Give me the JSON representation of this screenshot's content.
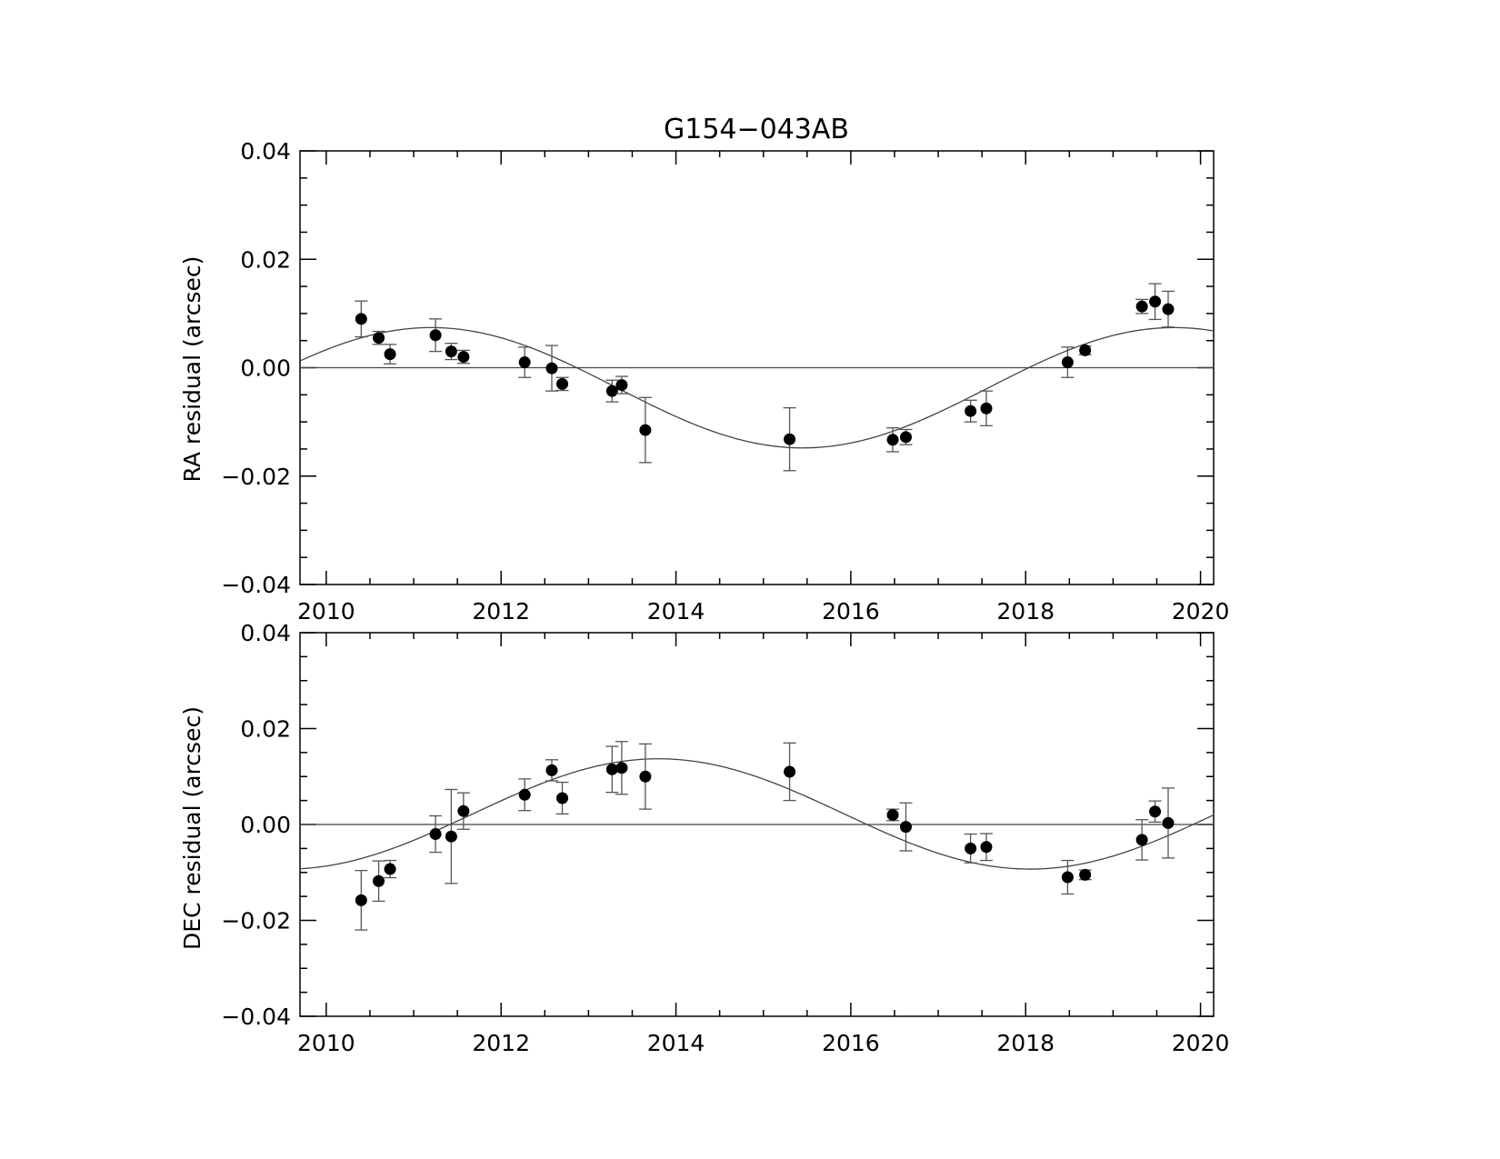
{
  "chart_data": [
    {
      "type": "scatter",
      "title": "G154−043AB",
      "ylabel": "RA residual (arcsec)",
      "xlabel": "",
      "xlim": [
        2009.7,
        2020.15
      ],
      "ylim": [
        -0.04,
        0.04
      ],
      "xticks": [
        2010,
        2012,
        2014,
        2016,
        2018,
        2020
      ],
      "xtick_labels": [
        "2010",
        "2012",
        "2014",
        "2016",
        "2018",
        "2020"
      ],
      "yticks": [
        -0.04,
        -0.02,
        0.0,
        0.02,
        0.04
      ],
      "ytick_labels": [
        "−0.04",
        "−0.02",
        "0.00",
        "0.02",
        "0.04"
      ],
      "zero_line": 0,
      "fit": {
        "offset": -0.0037,
        "amplitude": 0.0111,
        "period_years": 8.5,
        "peak_epoch": 2011.2
      },
      "points": [
        {
          "x": 2010.4,
          "y": 0.009,
          "err": 0.0033
        },
        {
          "x": 2010.6,
          "y": 0.0055,
          "err": 0.0012
        },
        {
          "x": 2010.73,
          "y": 0.0025,
          "err": 0.0018
        },
        {
          "x": 2011.25,
          "y": 0.006,
          "err": 0.003
        },
        {
          "x": 2011.43,
          "y": 0.003,
          "err": 0.0015
        },
        {
          "x": 2011.57,
          "y": 0.002,
          "err": 0.0012
        },
        {
          "x": 2012.27,
          "y": 0.001,
          "err": 0.0028
        },
        {
          "x": 2012.58,
          "y": -0.0001,
          "err": 0.0042
        },
        {
          "x": 2012.7,
          "y": -0.003,
          "err": 0.0012
        },
        {
          "x": 2013.27,
          "y": -0.0043,
          "err": 0.002
        },
        {
          "x": 2013.38,
          "y": -0.0032,
          "err": 0.0016
        },
        {
          "x": 2013.65,
          "y": -0.0115,
          "err": 0.006
        },
        {
          "x": 2015.3,
          "y": -0.0132,
          "err": 0.0058
        },
        {
          "x": 2016.48,
          "y": -0.0133,
          "err": 0.0022
        },
        {
          "x": 2016.63,
          "y": -0.0128,
          "err": 0.0014
        },
        {
          "x": 2017.37,
          "y": -0.008,
          "err": 0.002
        },
        {
          "x": 2017.55,
          "y": -0.0075,
          "err": 0.0032
        },
        {
          "x": 2018.48,
          "y": 0.001,
          "err": 0.0028
        },
        {
          "x": 2018.68,
          "y": 0.0032,
          "err": 0.0008
        },
        {
          "x": 2019.33,
          "y": 0.0113,
          "err": 0.0013
        },
        {
          "x": 2019.48,
          "y": 0.0122,
          "err": 0.0033
        },
        {
          "x": 2019.63,
          "y": 0.0108,
          "err": 0.0033
        }
      ]
    },
    {
      "type": "scatter",
      "title": "",
      "ylabel": "DEC residual (arcsec)",
      "xlabel": "",
      "xlim": [
        2009.7,
        2020.15
      ],
      "ylim": [
        -0.04,
        0.04
      ],
      "xticks": [
        2010,
        2012,
        2014,
        2016,
        2018,
        2020
      ],
      "xtick_labels": [
        "2010",
        "2012",
        "2014",
        "2016",
        "2018",
        "2020"
      ],
      "yticks": [
        -0.04,
        -0.02,
        0.0,
        0.02,
        0.04
      ],
      "ytick_labels": [
        "−0.04",
        "−0.02",
        "0.00",
        "0.02",
        "0.04"
      ],
      "zero_line": 0,
      "fit": {
        "offset": 0.0022,
        "amplitude": 0.0115,
        "period_years": 8.5,
        "peak_epoch": 2013.8
      },
      "points": [
        {
          "x": 2010.4,
          "y": -0.0158,
          "err": 0.0062
        },
        {
          "x": 2010.6,
          "y": -0.0118,
          "err": 0.0042
        },
        {
          "x": 2010.73,
          "y": -0.0093,
          "err": 0.0018
        },
        {
          "x": 2011.25,
          "y": -0.002,
          "err": 0.0038
        },
        {
          "x": 2011.43,
          "y": -0.0025,
          "err": 0.0098
        },
        {
          "x": 2011.57,
          "y": 0.0028,
          "err": 0.0038
        },
        {
          "x": 2012.27,
          "y": 0.0062,
          "err": 0.0033
        },
        {
          "x": 2012.58,
          "y": 0.0113,
          "err": 0.0022
        },
        {
          "x": 2012.7,
          "y": 0.0055,
          "err": 0.0033
        },
        {
          "x": 2013.27,
          "y": 0.0115,
          "err": 0.0048
        },
        {
          "x": 2013.38,
          "y": 0.0118,
          "err": 0.0055
        },
        {
          "x": 2013.65,
          "y": 0.01,
          "err": 0.0068
        },
        {
          "x": 2015.3,
          "y": 0.011,
          "err": 0.006
        },
        {
          "x": 2016.48,
          "y": 0.002,
          "err": 0.0012
        },
        {
          "x": 2016.63,
          "y": -0.0005,
          "err": 0.005
        },
        {
          "x": 2017.37,
          "y": -0.005,
          "err": 0.003
        },
        {
          "x": 2017.55,
          "y": -0.0047,
          "err": 0.0028
        },
        {
          "x": 2018.48,
          "y": -0.011,
          "err": 0.0035
        },
        {
          "x": 2018.68,
          "y": -0.0105,
          "err": 0.001
        },
        {
          "x": 2019.33,
          "y": -0.0032,
          "err": 0.0042
        },
        {
          "x": 2019.48,
          "y": 0.0027,
          "err": 0.0022
        },
        {
          "x": 2019.63,
          "y": 0.0003,
          "err": 0.0073
        }
      ]
    }
  ]
}
